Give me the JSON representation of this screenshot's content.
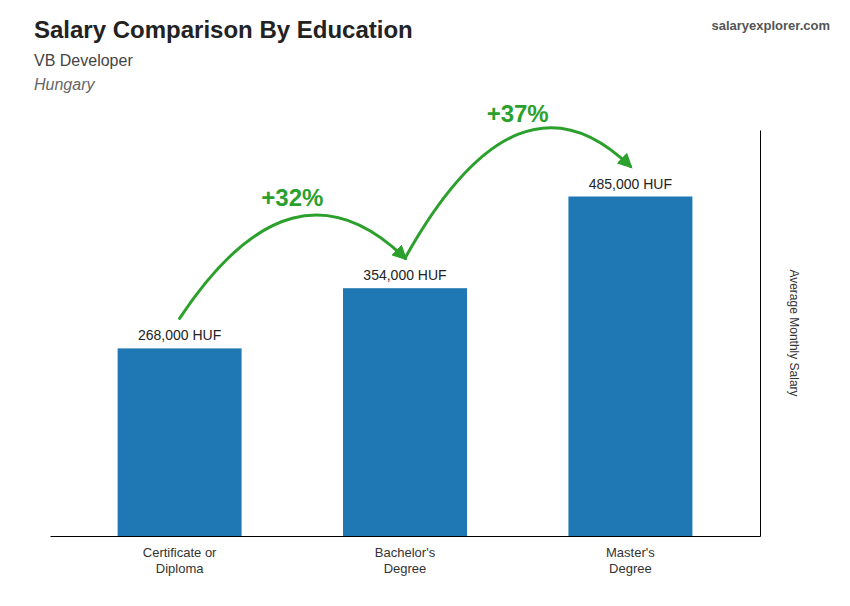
{
  "chart_data": {
    "type": "bar",
    "title": "Salary Comparison By Education",
    "subtitle": "VB Developer",
    "country": "Hungary",
    "brand": "salaryexplorer.com",
    "ylabel": "Average Monthly Salary",
    "categories": [
      "Certificate or\nDiploma",
      "Bachelor's\nDegree",
      "Master's\nDegree"
    ],
    "values": [
      268000,
      354000,
      485000
    ],
    "value_labels": [
      "268,000 HUF",
      "354,000 HUF",
      "485,000 HUF"
    ],
    "data_labels": true,
    "change_labels": [
      "+32%",
      "+37%"
    ],
    "ylim": [
      0,
      580000
    ],
    "tick_labels": false,
    "grid": false
  }
}
